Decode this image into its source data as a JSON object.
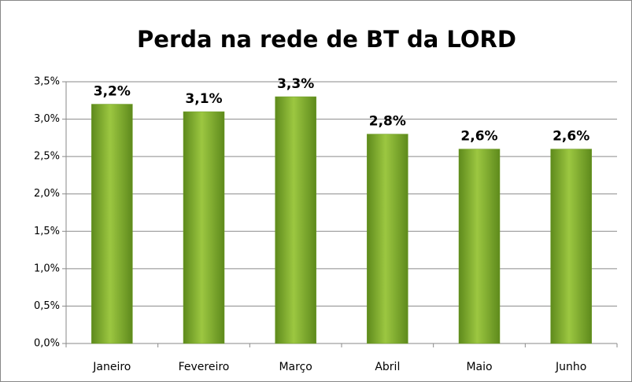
{
  "chart_data": {
    "type": "bar",
    "title": "Perda na rede de BT da LORD",
    "categories": [
      "Janeiro",
      "Fevereiro",
      "Março",
      "Abril",
      "Maio",
      "Junho"
    ],
    "values": [
      3.2,
      3.1,
      3.3,
      2.8,
      2.6,
      2.6
    ],
    "value_labels": [
      "3,2%",
      "3,1%",
      "3,3%",
      "2,8%",
      "2,6%",
      "2,6%"
    ],
    "color": "#9cc741",
    "ylim": [
      0,
      3.5
    ],
    "yticks": [
      {
        "value": 0,
        "label": "0,0%"
      },
      {
        "value": 0.5,
        "label": "0,5%"
      },
      {
        "value": 1,
        "label": "1,0%"
      },
      {
        "value": 1.5,
        "label": "1,5%"
      },
      {
        "value": 2,
        "label": "2,0%"
      },
      {
        "value": 2.5,
        "label": "2,5%"
      },
      {
        "value": 3,
        "label": "3,0%"
      },
      {
        "value": 3.5,
        "label": "3,5%"
      }
    ],
    "grid": true
  }
}
